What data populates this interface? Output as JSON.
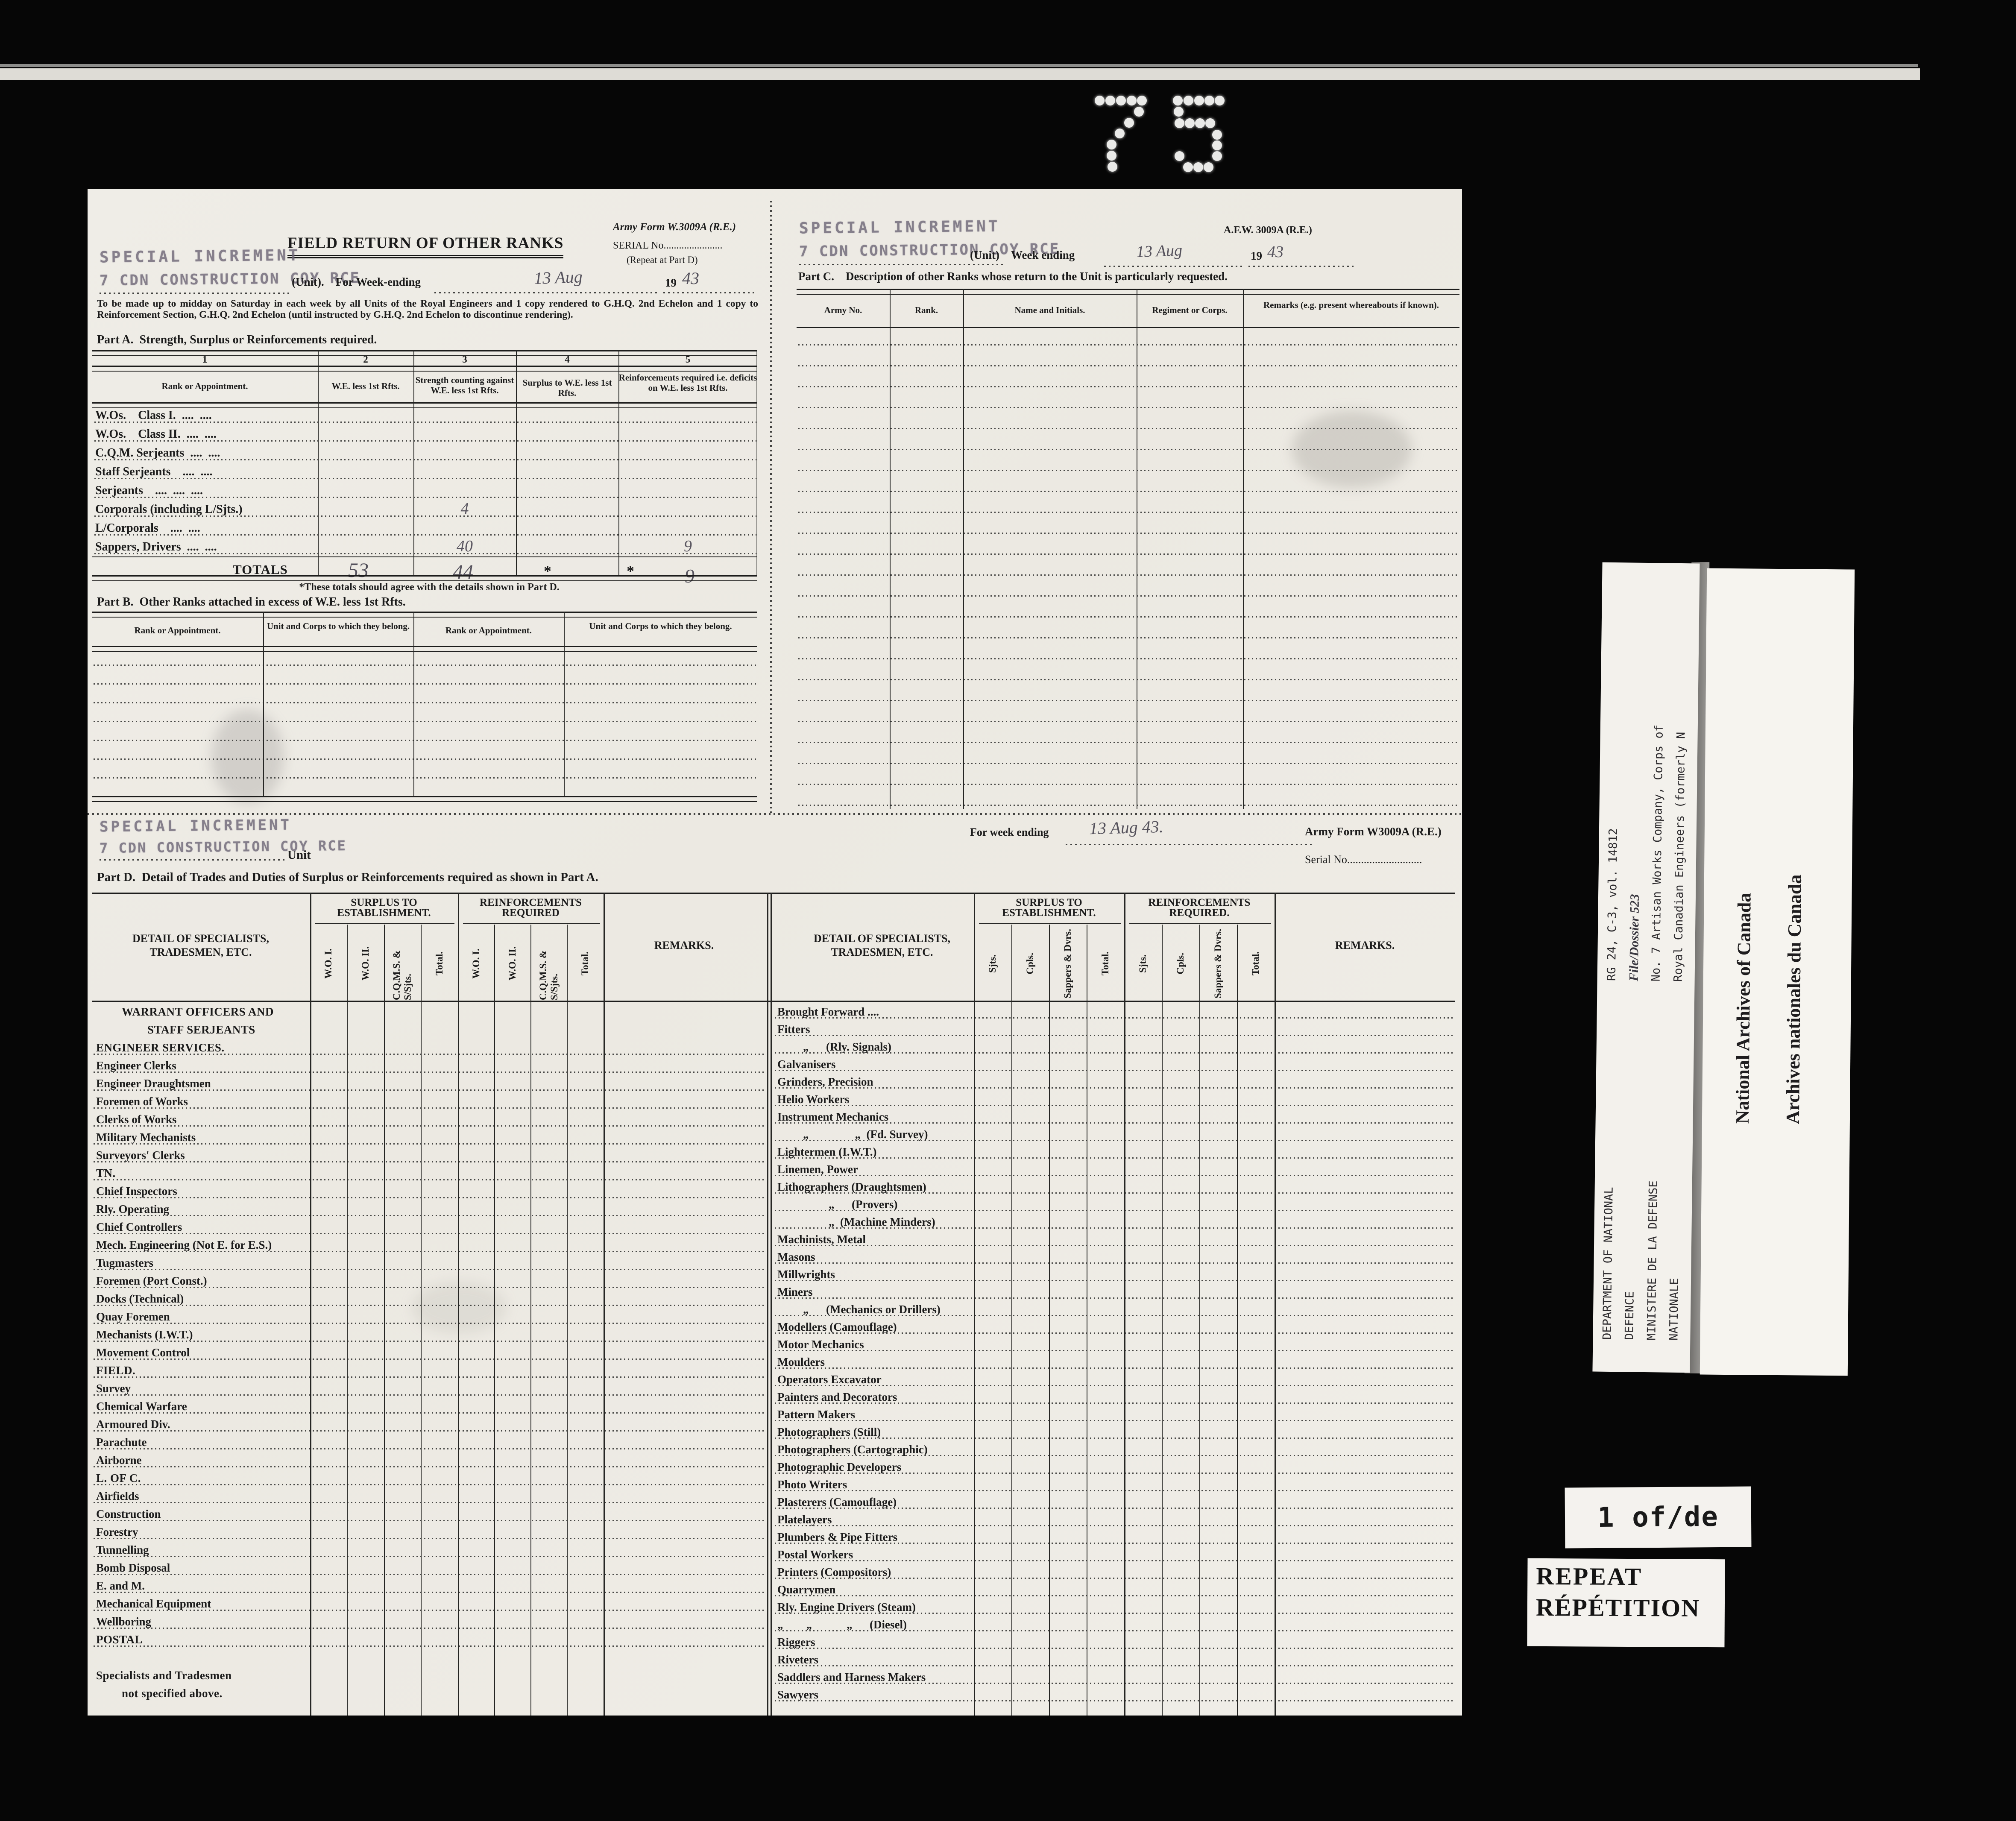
{
  "punched_number": "75",
  "stamp": {
    "line1": "SPECIAL INCREMENT",
    "line2": "7 CDN CONSTRUCTION COY RCE"
  },
  "left_form": {
    "form_no": "Army Form W.3009A (R.E.)",
    "title": "FIELD RETURN OF OTHER RANKS",
    "serial": "SERIAL No.......................",
    "serial_note": "(Repeat at Part D)",
    "unit_week_label": "(Unit).  For Week-ending",
    "week_value": "13 Aug",
    "year_prefix": "19",
    "year_value": "43",
    "instructions": "To be made up to midday on Saturday in each week by all Units of the Royal Engineers and 1 copy rendered to G.H.Q. 2nd Echelon and 1 copy to Reinforcement Section, G.H.Q. 2nd Echelon (until instructed by G.H.Q. 2nd Echelon to discontinue rendering).",
    "part_a": {
      "title": "Part A. Strength, Surplus or Reinforcements required.",
      "col_nums": [
        "1",
        "2",
        "3",
        "4",
        "5"
      ],
      "columns": [
        "Rank or Appointment.",
        "W.E. less 1st Rfts.",
        "Strength counting against W.E. less 1st Rfts.",
        "Surplus to W.E. less 1st Rfts.",
        "Reinforcements required i.e. deficits on W.E. less 1st Rfts."
      ],
      "rows": [
        {
          "label": "W.Os. Class I. .... ...."
        },
        {
          "label": "W.Os. Class II. .... ...."
        },
        {
          "label": "C.Q.M. Serjeants .... ...."
        },
        {
          "label": "Staff Serjeants .... ...."
        },
        {
          "label": "Serjeants .... .... ...."
        },
        {
          "label": "Corporals (including L/Sjts.)",
          "c3": "4"
        },
        {
          "label": "L/Corporals .... ...."
        },
        {
          "label": "Sappers, Drivers .... ....",
          "c3": "40",
          "c5": "9"
        }
      ],
      "totals_label": "TOTALS",
      "totals": {
        "c2": "53",
        "c3": "44",
        "c4_star": "*",
        "c5_star": "*",
        "c5": "9"
      },
      "footnote": "*These totals should agree with the details shown in Part D."
    },
    "part_b": {
      "title": "Part B. Other Ranks attached in excess of W.E. less 1st Rfts.",
      "columns": [
        "Rank or Appointment.",
        "Unit and Corps to which they belong.",
        "Rank or Appointment.",
        "Unit and Corps to which they belong."
      ],
      "empty_rows": 8
    }
  },
  "right_form": {
    "form_no": "A.F.W. 3009A (R.E.)",
    "unit_week_label": "(Unit)  Week ending",
    "week_value": "13 Aug",
    "year_prefix": "19",
    "year_value": "43",
    "part_c": {
      "title": "Part C.  Description of other Ranks whose return to the Unit is particularly requested.",
      "columns": [
        "Army No.",
        "Rank.",
        "Name and Initials.",
        "Regiment or Corps.",
        "Remarks (e.g. present whereabouts if known)."
      ],
      "empty_rows": 23
    }
  },
  "part_d": {
    "unit_suffix": "Unit",
    "week_label": "For week ending",
    "week_value": "13 Aug 43.",
    "form_no": "Army Form W3009A (R.E.)",
    "serial": "Serial No...........................",
    "title": "Part D. Detail of Trades and Duties of Surplus or Reinforcements required as shown in Part A.",
    "detail_header": "DETAIL OF SPECIALISTS, TRADESMEN, ETC.",
    "surplus_header": "SURPLUS TO ESTABLISHMENT.",
    "reinforcements_header": "REINFORCEMENTS REQUIRED",
    "reinforcements_header_right": "REINFORCEMENTS REQUIRED.",
    "remarks_header": "REMARKS.",
    "left_subcols": [
      "W.O. I.",
      "W.O. II.",
      "C.Q.M.S. & S/Sjts.",
      "Total."
    ],
    "right_subcols": [
      "Sjts.",
      "Cpls.",
      "Sappers & Dvrs.",
      "Total."
    ],
    "left_rows": [
      {
        "t": "WARRANT OFFICERS AND",
        "b": 1,
        "noline": 1,
        "indent": 1
      },
      {
        "t": "STAFF SERJEANTS",
        "b": 1,
        "noline": 1,
        "indent": 2
      },
      {
        "t": "ENGINEER SERVICES.",
        "b": 1
      },
      {
        "t": "Engineer Clerks"
      },
      {
        "t": "Engineer Draughtsmen"
      },
      {
        "t": "Foremen of Works"
      },
      {
        "t": "Clerks of Works"
      },
      {
        "t": "Military Mechanists"
      },
      {
        "t": "Surveyors' Clerks"
      },
      {
        "t": "TN.",
        "b": 1
      },
      {
        "t": "Chief Inspectors"
      },
      {
        "t": "Rly. Operating"
      },
      {
        "t": "Chief Controllers"
      },
      {
        "t": "Mech. Engineering (Not E. for E.S.)"
      },
      {
        "t": "Tugmasters"
      },
      {
        "t": "Foremen (Port Const.)"
      },
      {
        "t": "Docks (Technical)"
      },
      {
        "t": "Quay Foremen"
      },
      {
        "t": "Mechanists (I.W.T.)"
      },
      {
        "t": "Movement Control"
      },
      {
        "t": "FIELD.",
        "b": 1
      },
      {
        "t": "Survey"
      },
      {
        "t": "Chemical Warfare"
      },
      {
        "t": "Armoured Div."
      },
      {
        "t": "Parachute"
      },
      {
        "t": "Airborne"
      },
      {
        "t": "L. OF C.",
        "b": 1
      },
      {
        "t": "Airfields"
      },
      {
        "t": "Construction"
      },
      {
        "t": "Forestry"
      },
      {
        "t": "Tunnelling"
      },
      {
        "t": "Bomb Disposal"
      },
      {
        "t": "E. and M."
      },
      {
        "t": "Mechanical Equipment"
      },
      {
        "t": "Wellboring"
      },
      {
        "t": "POSTAL",
        "b": 1
      },
      {
        "t": "",
        "noline": 1
      },
      {
        "t": "Specialists and Tradesmen",
        "b": 1,
        "noline": 1
      },
      {
        "t": "not specified above.",
        "b": 1,
        "indent": 1,
        "noline": 1
      }
    ],
    "right_rows": [
      {
        "t": "Brought Forward ...."
      },
      {
        "t": "Fitters"
      },
      {
        "t": "„  (Rly. Signals)",
        "indent": 1
      },
      {
        "t": "Galvanisers"
      },
      {
        "t": "Grinders, Precision"
      },
      {
        "t": "Helio Workers"
      },
      {
        "t": "Instrument Mechanics"
      },
      {
        "t": "„    „ (Fd. Survey)",
        "indent": 1
      },
      {
        "t": "Lightermen (I.W.T.)"
      },
      {
        "t": "Linemen, Power"
      },
      {
        "t": "Lithographers (Draughtsmen)"
      },
      {
        "t": "„  (Provers)",
        "indent": 2
      },
      {
        "t": "„ (Machine Minders)",
        "indent": 2
      },
      {
        "t": "Machinists, Metal"
      },
      {
        "t": "Masons"
      },
      {
        "t": "Millwrights"
      },
      {
        "t": "Miners"
      },
      {
        "t": "„  (Mechanics or Drillers)",
        "indent": 1
      },
      {
        "t": "Modellers (Camouflage)"
      },
      {
        "t": "Motor Mechanics"
      },
      {
        "t": "Moulders"
      },
      {
        "t": "Operators Excavator"
      },
      {
        "t": "Painters and Decorators"
      },
      {
        "t": "Pattern Makers"
      },
      {
        "t": "Photographers (Still)"
      },
      {
        "t": "Photographers (Cartographic)"
      },
      {
        "t": "Photographic Developers"
      },
      {
        "t": "Photo Writers"
      },
      {
        "t": "Plasterers (Camouflage)"
      },
      {
        "t": "Platelayers"
      },
      {
        "t": "Plumbers & Pipe Fitters"
      },
      {
        "t": "Postal Workers"
      },
      {
        "t": "Printers (Compositors)"
      },
      {
        "t": "Quarrymen"
      },
      {
        "t": "Rly. Engine Drivers (Steam)"
      },
      {
        "t": "„  „   „  (Diesel)"
      },
      {
        "t": "Riggers"
      },
      {
        "t": "Riveters"
      },
      {
        "t": "Saddlers and Harness Makers"
      },
      {
        "t": "Sawyers"
      }
    ]
  },
  "annotations": {
    "archive_lines": [
      {
        "t": "RG 24, C-3, vol. 14812"
      },
      {
        "t": "File/Dossier 523",
        "hw": 1
      },
      {
        "t": "No. 7 Artisan Works Company, Corps of"
      },
      {
        "t": "Royal Canadian Engineers (formerly N"
      }
    ],
    "dept_lines": [
      {
        "t": "DEPARTMENT OF NATIONAL"
      },
      {
        "t": "DEFENCE"
      },
      {
        "t": "MINISTERE DE LA DEFENSE"
      },
      {
        "t": "NATIONALE"
      }
    ],
    "natarch_lines": [
      {
        "t": "National Archives of Canada"
      },
      {
        "t": "Archives nationales du Canada"
      }
    ],
    "page_label": "1 of/de",
    "repeat_line1": "REPEAT",
    "repeat_line2": "RÉPÉTITION"
  }
}
